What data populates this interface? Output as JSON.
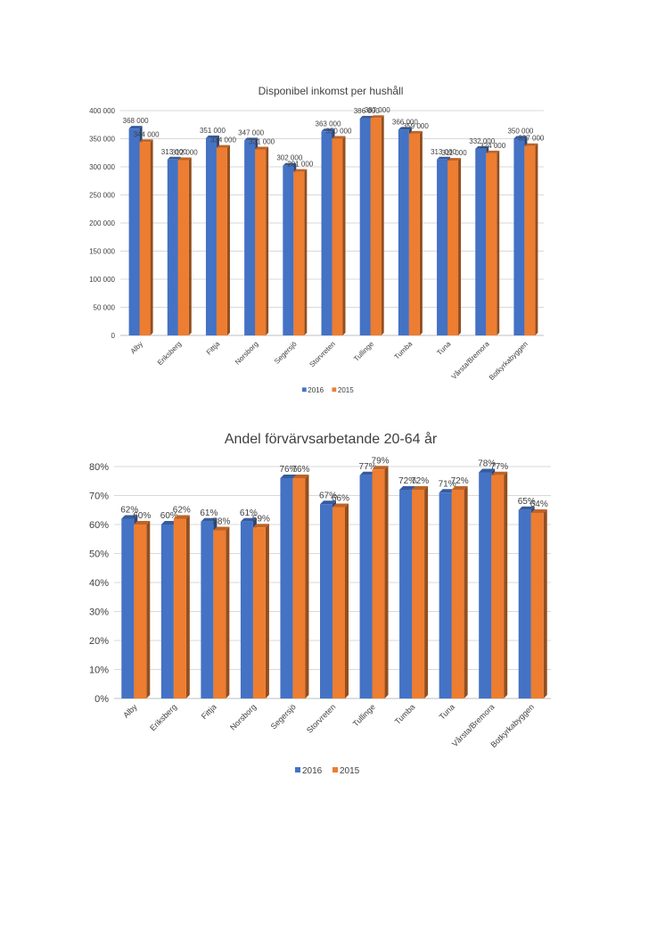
{
  "chart_data": [
    {
      "type": "bar",
      "title": "Disponibel inkomst per hushåll",
      "xlabel": "",
      "ylabel": "",
      "ylim": [
        0,
        400000
      ],
      "y_ticks": [
        "0",
        "50 000",
        "100 000",
        "150 000",
        "200 000",
        "250 000",
        "300 000",
        "350 000",
        "400 000"
      ],
      "grid": true,
      "legend": "bottom",
      "categories": [
        "Alby",
        "Eriksberg",
        "Fittja",
        "Norsborg",
        "Segersjö",
        "Storvreten",
        "Tullinge",
        "Tumba",
        "Tuna",
        "Vårsta/Bremora",
        "Botkyrkabyggen"
      ],
      "series": [
        {
          "name": "2016",
          "color": "#4472C4",
          "values": [
            368000,
            313000,
            351000,
            347000,
            302000,
            363000,
            386000,
            366000,
            313000,
            332000,
            350000
          ],
          "labels": [
            "368 000",
            "313 000",
            "351 000",
            "347 000",
            "302 000",
            "363 000",
            "386 000",
            "366 000",
            "313 000",
            "332 000",
            "350 000"
          ]
        },
        {
          "name": "2015",
          "color": "#ED7D31",
          "values": [
            344000,
            312000,
            334000,
            331000,
            291000,
            350000,
            387000,
            359000,
            311000,
            324000,
            337000
          ],
          "labels": [
            "344 000",
            "312 000",
            "334 000",
            "331 000",
            "291 000",
            "350 000",
            "387 000",
            "359 000",
            "311 000",
            "324 000",
            "337 000"
          ]
        }
      ]
    },
    {
      "type": "bar",
      "title": "Andel förvärvsarbetande 20-64 år",
      "xlabel": "",
      "ylabel": "",
      "ylim": [
        0,
        80
      ],
      "y_ticks": [
        "0%",
        "10%",
        "20%",
        "30%",
        "40%",
        "50%",
        "60%",
        "70%",
        "80%"
      ],
      "grid": true,
      "legend": "bottom",
      "categories": [
        "Alby",
        "Eriksberg",
        "Fittja",
        "Norsborg",
        "Segersjö",
        "Storvreten",
        "Tullinge",
        "Tumba",
        "Tuna",
        "Vårsta/Bremora",
        "Botkyrkabyggen"
      ],
      "series": [
        {
          "name": "2016",
          "color": "#4472C4",
          "values": [
            62,
            60,
            61,
            61,
            76,
            67,
            77,
            72,
            71,
            78,
            65
          ],
          "labels": [
            "62%",
            "60%",
            "61%",
            "61%",
            "76%",
            "67%",
            "77%",
            "72%",
            "71%",
            "78%",
            "65%"
          ]
        },
        {
          "name": "2015",
          "color": "#ED7D31",
          "values": [
            60,
            62,
            58,
            59,
            76,
            66,
            79,
            72,
            72,
            77,
            64
          ],
          "labels": [
            "60%",
            "62%",
            "58%",
            "59%",
            "76%",
            "66%",
            "79%",
            "72%",
            "72%",
            "77%",
            "64%"
          ]
        }
      ]
    }
  ]
}
